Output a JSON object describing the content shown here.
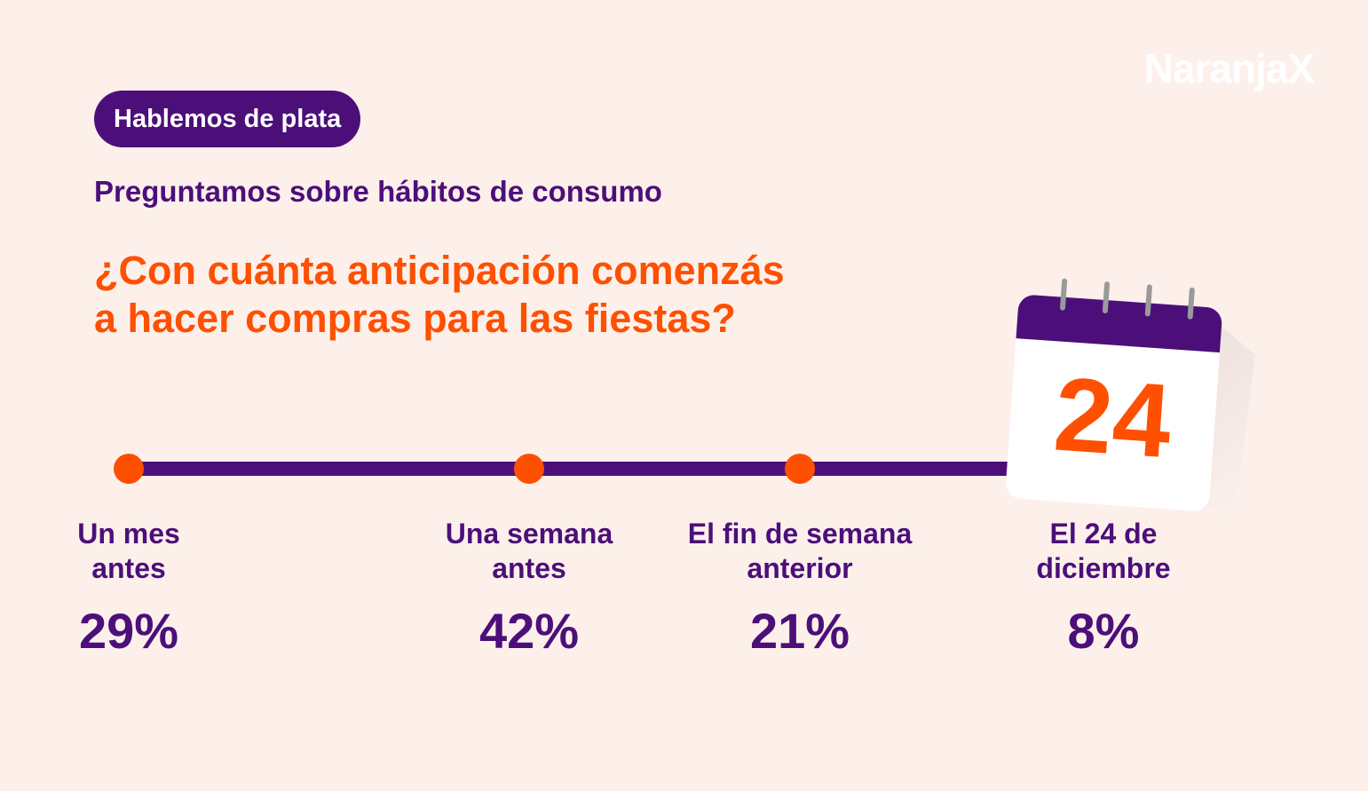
{
  "brand": {
    "name": "NaranjaX"
  },
  "header": {
    "tag": "Hablemos de plata",
    "subtitle": "Preguntamos sobre hábitos de consumo",
    "question_line1": "¿Con cuánta anticipación comenzás",
    "question_line2": "a hacer compras para las fiestas?"
  },
  "calendar": {
    "day": "24"
  },
  "stops": [
    {
      "line1": "Un mes",
      "line2": "antes",
      "value": "29%"
    },
    {
      "line1": "Una semana",
      "line2": "antes",
      "value": "42%"
    },
    {
      "line1": "El fin de semana",
      "line2": "anterior",
      "value": "21%"
    },
    {
      "line1": "El 24 de",
      "line2": "diciembre",
      "value": "8%"
    }
  ],
  "colors": {
    "purple": "#4c0f7a",
    "orange": "#fe5000",
    "background": "#fdf0eb"
  }
}
